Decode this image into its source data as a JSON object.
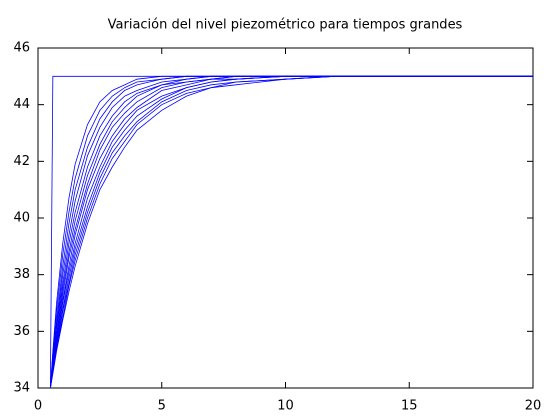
{
  "chart_data": {
    "type": "line",
    "title": "Variación del nivel piezométrico para tiempos grandes",
    "x": [
      0.5,
      0.6,
      0.75,
      1,
      1.25,
      1.5,
      2,
      2.5,
      3,
      3.5,
      4,
      5,
      6,
      7,
      8,
      10,
      12,
      14,
      16,
      18,
      20
    ],
    "series": [
      {
        "color": "#0000ff",
        "values": [
          34,
          45,
          45,
          45,
          45,
          45,
          45,
          45,
          45,
          45,
          45,
          45,
          45,
          45,
          45,
          45,
          45,
          45,
          45,
          45,
          45
        ]
      },
      {
        "color": "#0000ff",
        "values": [
          34,
          35.3,
          37.0,
          39.1,
          40.7,
          41.9,
          43.3,
          44.1,
          44.5,
          44.7,
          44.9,
          45,
          45,
          45,
          45,
          45,
          45,
          45,
          45,
          45,
          45
        ]
      },
      {
        "color": "#0000ff",
        "values": [
          34,
          35.2,
          36.7,
          38.7,
          40.2,
          41.4,
          42.9,
          43.8,
          44.3,
          44.6,
          44.8,
          44.9,
          45,
          45,
          45,
          45,
          45,
          45,
          45,
          45,
          45
        ]
      },
      {
        "color": "#0000ff",
        "values": [
          34,
          35.0,
          36.4,
          38.3,
          39.8,
          41.0,
          42.5,
          43.5,
          44.1,
          44.5,
          44.7,
          44.9,
          45,
          45,
          45,
          45,
          45,
          45,
          45,
          45,
          45
        ]
      },
      {
        "color": "#0000ff",
        "values": [
          34,
          35.0,
          36.2,
          38.0,
          39.4,
          40.6,
          42.2,
          43.2,
          43.9,
          44.3,
          44.5,
          44.8,
          44.9,
          45,
          45,
          45,
          45,
          45,
          45,
          45,
          45
        ]
      },
      {
        "color": "#0000ff",
        "values": [
          34,
          34.9,
          36.1,
          37.7,
          39.1,
          40.2,
          41.8,
          42.9,
          43.6,
          44.1,
          44.4,
          44.7,
          44.9,
          45,
          45,
          45,
          45,
          45,
          45,
          45,
          45
        ]
      },
      {
        "color": "#0000ff",
        "values": [
          34,
          34.8,
          35.9,
          37.5,
          38.8,
          39.9,
          41.5,
          42.6,
          43.4,
          43.9,
          44.3,
          44.7,
          44.8,
          44.9,
          45,
          45,
          45,
          45,
          45,
          45,
          45
        ]
      },
      {
        "color": "#0000ff",
        "values": [
          34,
          34.8,
          35.8,
          37.3,
          38.6,
          39.6,
          41.2,
          42.4,
          43.2,
          43.7,
          44.1,
          44.6,
          44.8,
          44.9,
          45,
          45,
          45,
          45,
          45,
          45,
          45
        ]
      },
      {
        "color": "#0000ff",
        "values": [
          34,
          34.7,
          35.7,
          37.1,
          38.3,
          39.4,
          41.0,
          42.1,
          42.9,
          43.5,
          43.9,
          44.5,
          44.7,
          44.9,
          44.9,
          45,
          45,
          45,
          45,
          45,
          45
        ]
      },
      {
        "color": "#0000ff",
        "values": [
          34,
          34.7,
          35.6,
          37.0,
          38.1,
          39.1,
          40.7,
          41.8,
          42.7,
          43.3,
          43.8,
          44.3,
          44.6,
          44.8,
          44.9,
          45,
          45,
          45,
          45,
          45,
          45
        ]
      },
      {
        "color": "#0000ff",
        "values": [
          34,
          34.6,
          35.5,
          36.8,
          37.9,
          38.9,
          40.4,
          41.6,
          42.5,
          43.1,
          43.6,
          44.2,
          44.6,
          44.8,
          44.9,
          45,
          45,
          45,
          45,
          45,
          45
        ]
      },
      {
        "color": "#0000ff",
        "values": [
          34,
          34.6,
          35.4,
          36.7,
          37.7,
          38.7,
          40.2,
          41.4,
          42.3,
          42.9,
          43.4,
          44.1,
          44.5,
          44.7,
          44.8,
          44.9,
          45,
          45,
          45,
          45,
          45
        ]
      },
      {
        "color": "#0000ff",
        "values": [
          34,
          34.6,
          35.4,
          36.5,
          37.6,
          38.5,
          40.0,
          41.2,
          42.1,
          42.7,
          43.3,
          44.0,
          44.4,
          44.6,
          44.8,
          44.9,
          45,
          45,
          45,
          45,
          45
        ]
      },
      {
        "color": "#0000ff",
        "values": [
          34,
          34.5,
          35.3,
          36.4,
          37.4,
          38.3,
          39.8,
          41.0,
          41.8,
          42.5,
          43.1,
          43.8,
          44.3,
          44.6,
          44.7,
          44.9,
          45,
          45,
          45,
          45,
          45
        ]
      }
    ],
    "xlim": [
      0,
      20
    ],
    "xticks": [
      0,
      5,
      10,
      15,
      20
    ],
    "ylim": [
      34,
      46
    ],
    "yticks": [
      34,
      36,
      38,
      40,
      42,
      44,
      46
    ],
    "grid": false
  }
}
